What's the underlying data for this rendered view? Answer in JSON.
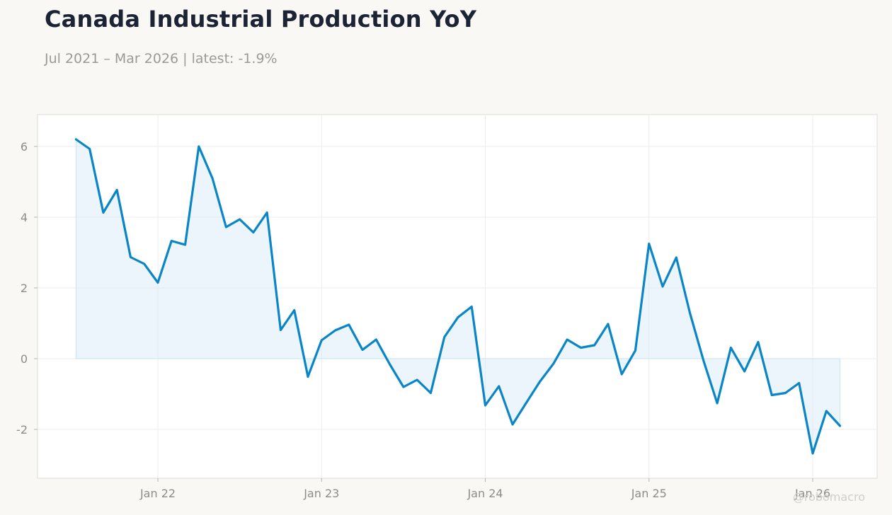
{
  "title": "Canada Industrial Production YoY",
  "subtitle": "Jul 2021 – Mar 2026 | latest: -1.9%",
  "watermark": "@robomacro",
  "colors": {
    "line": "#0a85c5",
    "fill": "#dcedf8",
    "plot_bg": "#ffffff",
    "page_bg": "#f9f8f5",
    "grid": "#ececec",
    "axis": "#dedcd6"
  },
  "chart_data": {
    "type": "area",
    "title": "Canada Industrial Production YoY",
    "xlabel": "",
    "ylabel": "",
    "x_start": "2021-07",
    "x_end": "2026-03",
    "frequency": "monthly",
    "ylim": [
      -3.4,
      6.9
    ],
    "y_ticks": [
      -2,
      0,
      2,
      4,
      6
    ],
    "y_tick_labels": [
      "-2",
      "0",
      "2",
      "4",
      "6"
    ],
    "x_ticks": [
      "2022-01",
      "2023-01",
      "2024-01",
      "2025-01",
      "2026-01"
    ],
    "x_tick_labels": [
      "Jan 22",
      "Jan 23",
      "Jan 24",
      "Jan 25",
      "Jan 26"
    ],
    "grid": true,
    "legend": "none",
    "series": [
      {
        "values": [
          6.2,
          5.93,
          4.13,
          4.77,
          2.87,
          2.68,
          2.15,
          3.33,
          3.22,
          6.0,
          5.1,
          3.72,
          3.94,
          3.57,
          4.13,
          0.81,
          1.37,
          -0.51,
          0.52,
          0.8,
          0.96,
          0.25,
          0.54,
          -0.16,
          -0.8,
          -0.6,
          -0.97,
          0.61,
          1.17,
          1.47,
          -1.32,
          -0.78,
          -1.86,
          -1.25,
          -0.65,
          -0.14,
          0.54,
          0.31,
          0.38,
          0.98,
          -0.44,
          0.23,
          3.25,
          2.04,
          2.86,
          1.29,
          -0.06,
          -1.26,
          0.31,
          -0.36,
          0.47,
          -1.03,
          -0.97,
          -0.69,
          -2.68,
          -1.48,
          -1.9
        ]
      }
    ]
  }
}
